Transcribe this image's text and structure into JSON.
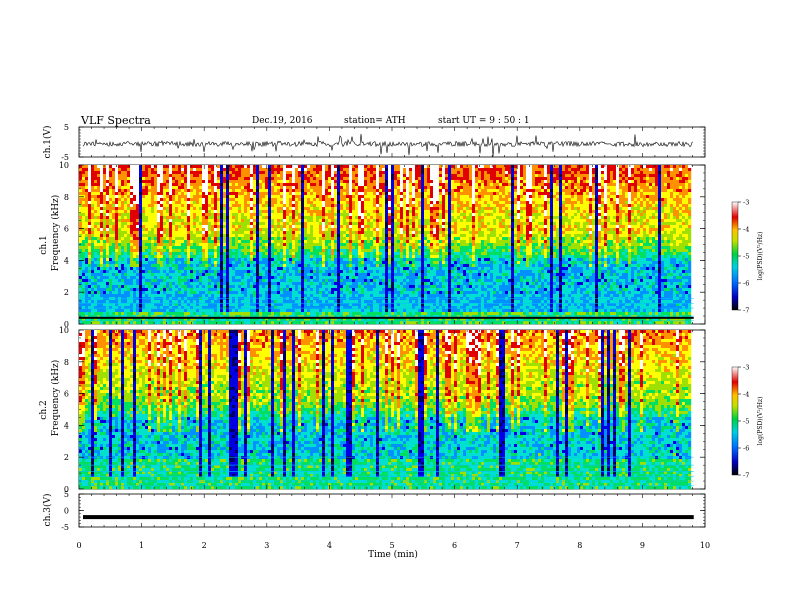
{
  "header": {
    "title": "VLF  Spectra",
    "date": "Dec.19, 2016",
    "station": "station= ATH",
    "start": "start  UT  =    9  : 50 : 1"
  },
  "chart_data": [
    {
      "type": "line",
      "name": "ch1-waveform",
      "ylabel": "ch.1(V)",
      "ylim": [
        -5,
        5
      ],
      "yticks": [
        "5",
        "-5"
      ],
      "xlim": [
        0,
        10
      ]
    },
    {
      "type": "heatmap",
      "name": "ch1-spectrogram",
      "ylabel": "Frequency  (kHz)",
      "channel_label": "ch.1",
      "ylim": [
        0,
        10
      ],
      "yticks": [
        "0",
        "2",
        "4",
        "6",
        "8",
        "10"
      ],
      "xlim": [
        0,
        10
      ],
      "colorbar": {
        "label": "log(PSD)(V²/Hz)",
        "min": -7,
        "max": -3,
        "ticks": [
          "-3",
          "-4",
          "-5",
          "-6",
          "-7"
        ]
      }
    },
    {
      "type": "heatmap",
      "name": "ch2-spectrogram",
      "ylabel": "Frequency  (kHz)",
      "channel_label": "ch.2",
      "ylim": [
        0,
        10
      ],
      "yticks": [
        "0",
        "2",
        "4",
        "6",
        "8",
        "10"
      ],
      "xlim": [
        0,
        10
      ],
      "colorbar": {
        "label": "log(PSD)(V²/Hz)",
        "min": -7,
        "max": -3,
        "ticks": [
          "-3",
          "-4",
          "-5",
          "-6",
          "-7"
        ]
      }
    },
    {
      "type": "line",
      "name": "ch3-waveform",
      "ylabel": "ch.3(V)",
      "ylim": [
        -5,
        5
      ],
      "yticks": [
        "5",
        "0",
        "-5"
      ],
      "xlim": [
        0,
        10
      ],
      "value": -2
    }
  ],
  "xaxis": {
    "label": "Time  (min)",
    "ticks": [
      "0",
      "1",
      "2",
      "3",
      "4",
      "5",
      "6",
      "7",
      "8",
      "9",
      "10"
    ],
    "data_end": 9.82
  },
  "colors": {
    "colormap": [
      "#000060",
      "#0000e0",
      "#0090ff",
      "#00e0d0",
      "#00e060",
      "#a0e000",
      "#ffff00",
      "#ff9000",
      "#e00000",
      "#ffffff"
    ]
  }
}
